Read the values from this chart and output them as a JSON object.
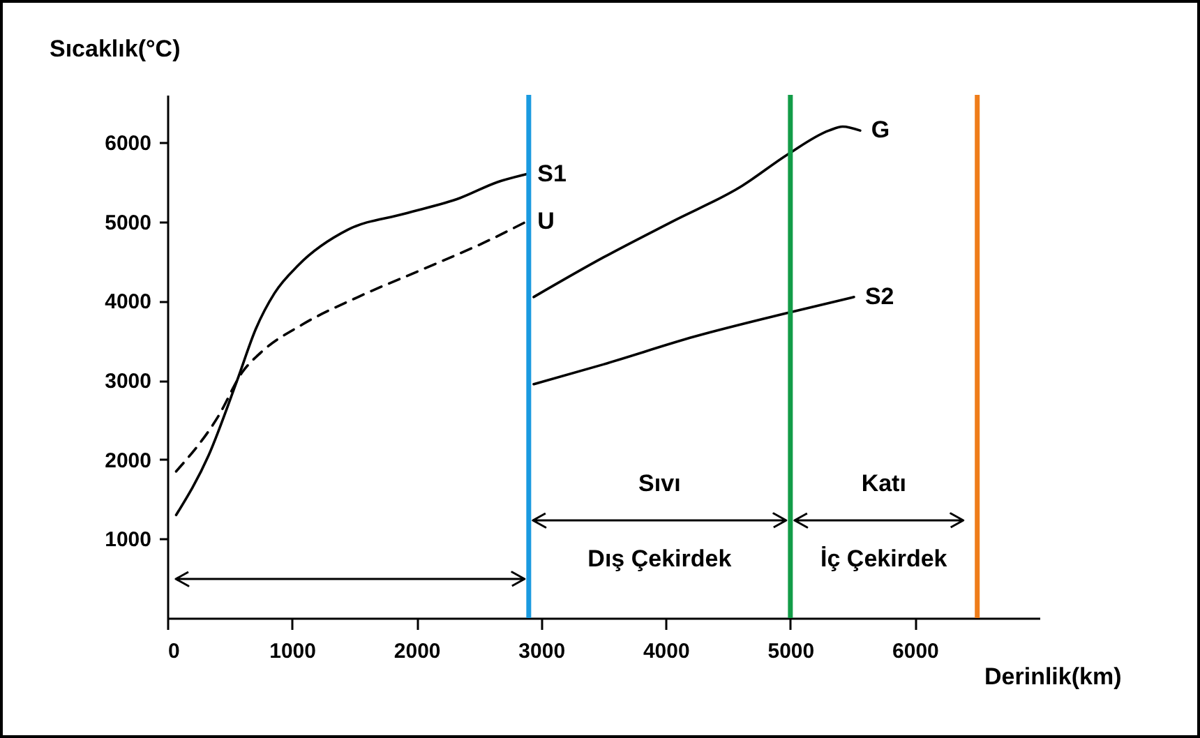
{
  "chart_data": {
    "type": "line",
    "xlabel": "Derinlik(km)",
    "ylabel": "Sıcaklık(°C)",
    "xlim": [
      0,
      7000
    ],
    "xticks": [
      0,
      1000,
      2000,
      3000,
      4000,
      5000,
      6000
    ],
    "ylim": [
      0,
      6600
    ],
    "yticks": [
      1000,
      2000,
      3000,
      4000,
      5000,
      6000
    ],
    "grid": false,
    "marker": "none",
    "line_style": "solid",
    "series": [
      {
        "name": "S1",
        "color": "#000000",
        "x": [
          70,
          330,
          560,
          710,
          860,
          1050,
          1450,
          1900,
          2350,
          2650,
          2880
        ],
        "values": [
          1300,
          2050,
          3000,
          3650,
          4100,
          4450,
          4900,
          5100,
          5300,
          5500,
          5600
        ]
      },
      {
        "name": "U",
        "color": "#000000",
        "line_style": "dashed",
        "x": [
          70,
          410,
          600,
          750,
          1080,
          1530,
          2050,
          2560,
          2880
        ],
        "values": [
          1850,
          2550,
          3100,
          3350,
          3700,
          4050,
          4400,
          4750,
          5000
        ]
      },
      {
        "name": "G",
        "color": "#000000",
        "x": [
          2940,
          3500,
          4050,
          4610,
          4980,
          5310,
          5420,
          5560
        ],
        "values": [
          4050,
          4550,
          5000,
          5450,
          5850,
          6150,
          6200,
          6150
        ]
      },
      {
        "name": "S2",
        "color": "#000000",
        "x": [
          2940,
          3500,
          4230,
          4980,
          5510
        ],
        "values": [
          2950,
          3200,
          3550,
          3850,
          4050
        ]
      }
    ],
    "ref_lines": [
      {
        "axis": "x",
        "value": 2900,
        "color": "#1a9ae0"
      },
      {
        "axis": "x",
        "value": 5000,
        "color": "#139c48"
      },
      {
        "axis": "x",
        "value": 6500,
        "color": "#ef7d1a"
      }
    ],
    "annotations": [
      "Sıvı",
      "Dış Çekirdek",
      "Katı",
      "İç Çekirdek"
    ]
  }
}
